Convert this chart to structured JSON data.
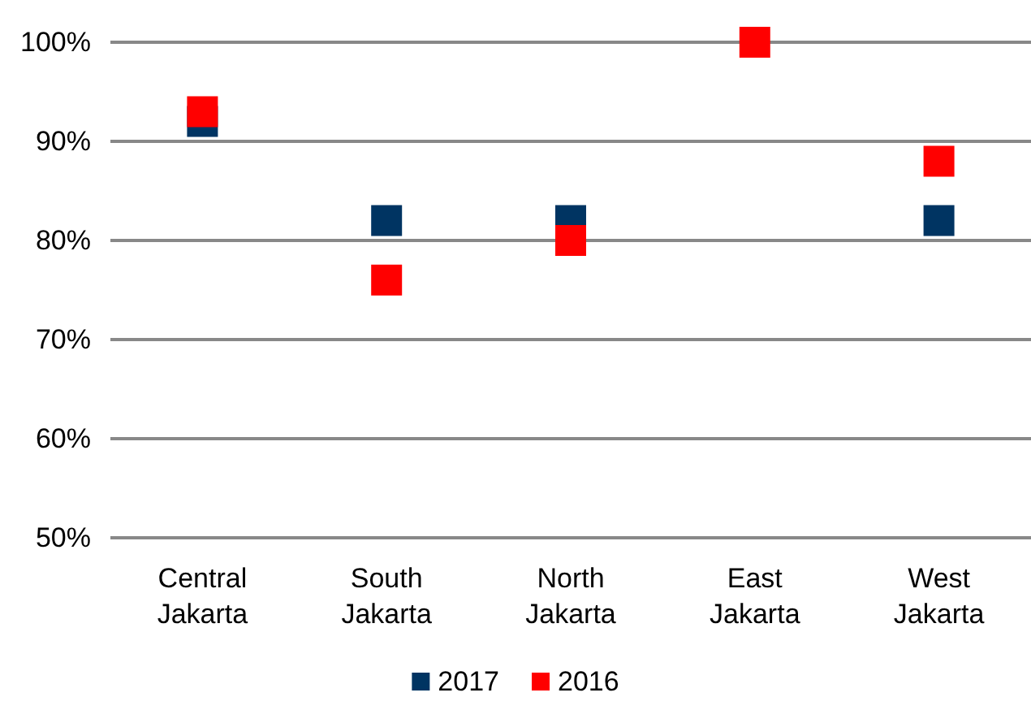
{
  "chart_data": {
    "type": "scatter",
    "categories": [
      "Central\nJakarta",
      "South\nJakarta",
      "North\nJakarta",
      "East\nJakarta",
      "West\nJakarta"
    ],
    "series": [
      {
        "name": "2017",
        "color": "#003462",
        "values": [
          92,
          82,
          82,
          null,
          82
        ]
      },
      {
        "name": "2016",
        "color": "#ff0000",
        "values": [
          93,
          76,
          80,
          100,
          88
        ]
      }
    ],
    "ylim": [
      50,
      100
    ],
    "yticks": [
      {
        "value": 50,
        "label": "50%"
      },
      {
        "value": 60,
        "label": "60%"
      },
      {
        "value": 70,
        "label": "70%"
      },
      {
        "value": 80,
        "label": "80%"
      },
      {
        "value": 90,
        "label": "90%"
      },
      {
        "value": 100,
        "label": "100%"
      }
    ],
    "grid": "y",
    "legend": "bottom",
    "marker": "square"
  }
}
